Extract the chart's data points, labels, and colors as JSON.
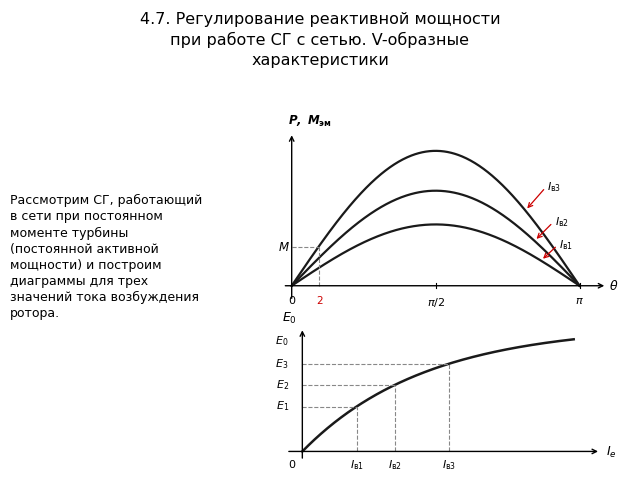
{
  "title": "4.7. Регулирование реактивной мощности\nпри работе СГ с сетью. V-образные\nхарактеристики",
  "body_text": "Рассмотрим СГ, работающий\nв сети при постоянном\nмоменте турбины\n(постоянной активной\nмощности) и построим\nдиаграммы для трех\nзначений тока возбуждения\nротора.",
  "background": "#ffffff",
  "curve_color": "#1a1a1a",
  "arrow_color": "#cc0000",
  "dashed_color": "#888888",
  "red_label_color": "#cc0000",
  "A1": 0.4,
  "A2": 0.62,
  "A3": 0.88,
  "M_val": 0.25,
  "theta_mark": 0.3,
  "Iv1": 0.2,
  "Iv2": 0.34,
  "Iv3": 0.54,
  "E0_k": 2.2
}
